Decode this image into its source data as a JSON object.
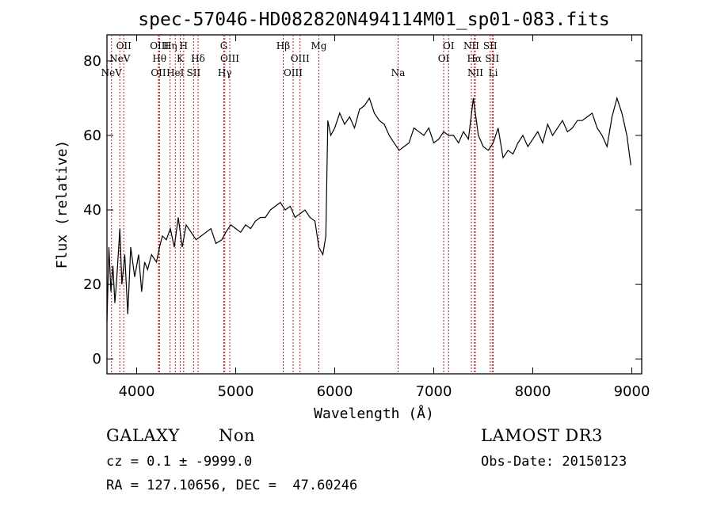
{
  "chart_data": {
    "type": "line",
    "title": "spec-57046-HD082820N494114M01_sp01-083.fits",
    "xlabel": "Wavelength (Å)",
    "ylabel": "Flux (relative)",
    "xlim": [
      3700,
      9100
    ],
    "ylim": [
      -4,
      87
    ],
    "x_ticks": [
      4000,
      5000,
      6000,
      7000,
      8000,
      9000
    ],
    "y_ticks": [
      0,
      20,
      40,
      60,
      80
    ],
    "grid": false,
    "series": [
      {
        "color": "#000000",
        "x": [
          3700,
          3720,
          3740,
          3760,
          3780,
          3800,
          3830,
          3850,
          3880,
          3910,
          3940,
          3980,
          4020,
          4050,
          4080,
          4110,
          4150,
          4200,
          4230,
          4260,
          4300,
          4340,
          4380,
          4420,
          4460,
          4500,
          4550,
          4600,
          4650,
          4700,
          4750,
          4800,
          4860,
          4900,
          4950,
          5000,
          5050,
          5100,
          5150,
          5200,
          5250,
          5300,
          5350,
          5400,
          5450,
          5500,
          5550,
          5600,
          5650,
          5700,
          5750,
          5800,
          5840,
          5880,
          5910,
          5930,
          5960,
          6000,
          6050,
          6100,
          6150,
          6200,
          6250,
          6300,
          6350,
          6400,
          6450,
          6500,
          6550,
          6600,
          6650,
          6700,
          6750,
          6800,
          6850,
          6900,
          6950,
          7000,
          7050,
          7100,
          7150,
          7200,
          7250,
          7300,
          7350,
          7400,
          7450,
          7500,
          7550,
          7600,
          7650,
          7700,
          7750,
          7800,
          7850,
          7900,
          7950,
          8000,
          8050,
          8100,
          8150,
          8200,
          8250,
          8300,
          8350,
          8400,
          8450,
          8500,
          8550,
          8600,
          8650,
          8700,
          8750,
          8800,
          8850,
          8900,
          8950,
          8990
        ],
        "values": [
          10,
          30,
          18,
          25,
          15,
          22,
          35,
          20,
          28,
          12,
          30,
          22,
          28,
          18,
          26,
          24,
          28,
          26,
          30,
          33,
          32,
          35,
          30,
          38,
          30,
          36,
          34,
          32,
          33,
          34,
          35,
          31,
          32,
          34,
          36,
          35,
          34,
          36,
          35,
          37,
          38,
          38,
          40,
          41,
          42,
          40,
          41,
          38,
          39,
          40,
          38,
          37,
          30,
          28,
          33,
          64,
          60,
          62,
          66,
          63,
          65,
          62,
          67,
          68,
          70,
          66,
          64,
          63,
          60,
          58,
          56,
          57,
          58,
          62,
          61,
          60,
          62,
          58,
          59,
          61,
          60,
          60,
          58,
          61,
          59,
          70,
          60,
          57,
          56,
          58,
          62,
          54,
          56,
          55,
          58,
          60,
          57,
          59,
          61,
          58,
          63,
          60,
          62,
          64,
          61,
          62,
          64,
          64,
          65,
          66,
          62,
          60,
          57,
          65,
          70,
          66,
          60,
          52
        ]
      }
    ],
    "lines": [
      {
        "label": "NeV",
        "x": 3746,
        "row": 3
      },
      {
        "label": "NeV",
        "x": 3830,
        "row": 2
      },
      {
        "label": "OII",
        "x": 3870,
        "row": 1
      },
      {
        "label": "OII",
        "x": 4220,
        "row": 3
      },
      {
        "label": "Hθ",
        "x": 4230,
        "row": 2
      },
      {
        "label": "OIII",
        "x": 4230,
        "row": 1
      },
      {
        "label": "Hη",
        "x": 4338,
        "row": 1
      },
      {
        "label": "HeI",
        "x": 4390,
        "row": 3
      },
      {
        "label": "K",
        "x": 4440,
        "row": 2
      },
      {
        "label": "H",
        "x": 4475,
        "row": 1
      },
      {
        "label": "SII",
        "x": 4575,
        "row": 3
      },
      {
        "label": "Hδ",
        "x": 4620,
        "row": 2
      },
      {
        "label": "G",
        "x": 4880,
        "row": 1
      },
      {
        "label": "Hγ",
        "x": 4890,
        "row": 3
      },
      {
        "label": "OIII",
        "x": 4940,
        "row": 2
      },
      {
        "label": "Hβ",
        "x": 5480,
        "row": 1
      },
      {
        "label": "OIII",
        "x": 5580,
        "row": 3
      },
      {
        "label": "OIII",
        "x": 5650,
        "row": 2
      },
      {
        "label": "Mg",
        "x": 5840,
        "row": 1
      },
      {
        "label": "Na",
        "x": 6640,
        "row": 3
      },
      {
        "label": "OI",
        "x": 7100,
        "row": 2
      },
      {
        "label": "OI",
        "x": 7150,
        "row": 1
      },
      {
        "label": "NII",
        "x": 7380,
        "row": 1
      },
      {
        "label": "Hα",
        "x": 7410,
        "row": 2
      },
      {
        "label": "NII",
        "x": 7420,
        "row": 3
      },
      {
        "label": "SII",
        "x": 7570,
        "row": 1
      },
      {
        "label": "SII",
        "x": 7590,
        "row": 2
      },
      {
        "label": "Li",
        "x": 7600,
        "row": 3
      }
    ]
  },
  "info": {
    "object_class": "GALAXY",
    "subclass": "Non",
    "survey": "LAMOST DR3",
    "cz": "cz = 0.1 ± -9999.0",
    "obs_date": "Obs-Date: 20150123",
    "coords": "RA = 127.10656, DEC =  47.60246"
  }
}
